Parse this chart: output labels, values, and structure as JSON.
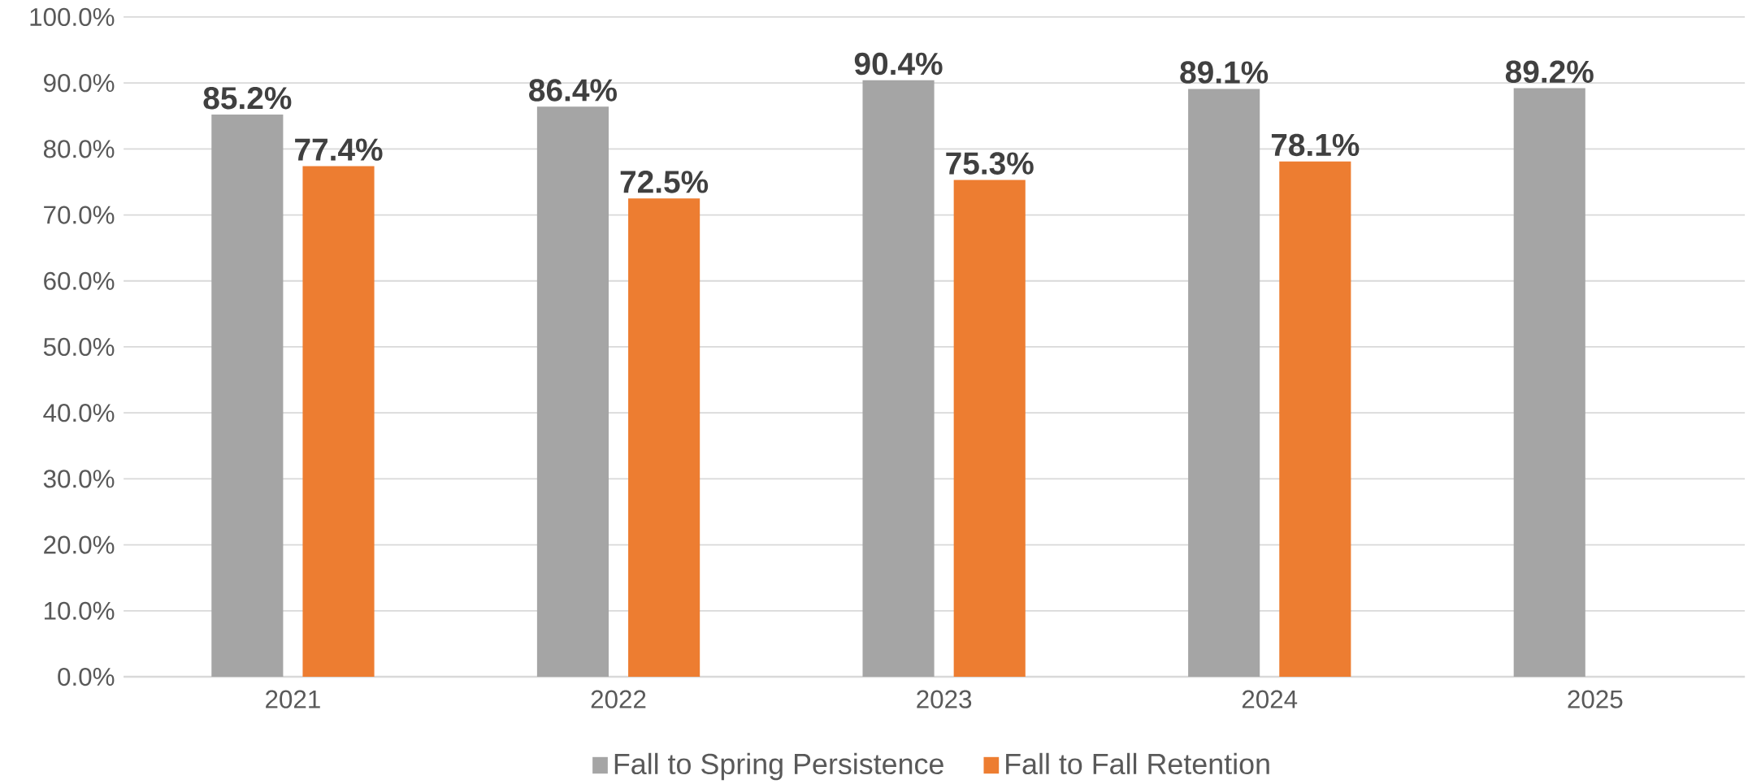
{
  "chart_data": {
    "type": "bar",
    "categories": [
      "2021",
      "2022",
      "2023",
      "2024",
      "2025"
    ],
    "series": [
      {
        "name": "Fall to Spring Persistence",
        "color": "#a5a5a5",
        "values": [
          85.2,
          86.4,
          90.4,
          89.1,
          89.2
        ],
        "value_labels": [
          "85.2%",
          "86.4%",
          "90.4%",
          "89.1%",
          "89.2%"
        ]
      },
      {
        "name": "Fall to Fall Retention",
        "color": "#ed7d31",
        "values": [
          77.4,
          72.5,
          75.3,
          78.1,
          null
        ],
        "value_labels": [
          "77.4%",
          "72.5%",
          "75.3%",
          "78.1%",
          null
        ]
      }
    ],
    "ylim": [
      0,
      100
    ],
    "yticks": [
      {
        "value": 0,
        "label": "0.0%"
      },
      {
        "value": 10,
        "label": "10.0%"
      },
      {
        "value": 20,
        "label": "20.0%"
      },
      {
        "value": 30,
        "label": "30.0%"
      },
      {
        "value": 40,
        "label": "40.0%"
      },
      {
        "value": 50,
        "label": "50.0%"
      },
      {
        "value": 60,
        "label": "60.0%"
      },
      {
        "value": 70,
        "label": "70.0%"
      },
      {
        "value": 80,
        "label": "80.0%"
      },
      {
        "value": 90,
        "label": "90.0%"
      },
      {
        "value": 100,
        "label": "100.0%"
      }
    ],
    "grid": "y",
    "legend": "bottom"
  }
}
